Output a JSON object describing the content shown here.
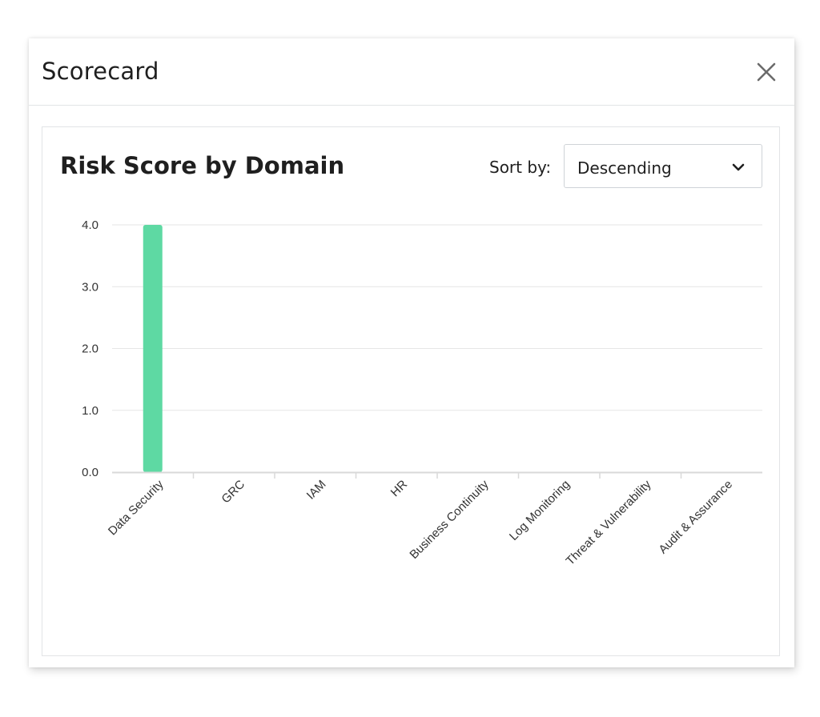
{
  "modal": {
    "title": "Scorecard",
    "close_icon": "close-icon"
  },
  "card": {
    "title": "Risk Score by Domain",
    "sort_label": "Sort by:",
    "sort_value": "Descending",
    "sort_icon": "chevron-down-icon"
  },
  "colors": {
    "bar": "#5ed9a3",
    "gridline": "#e6e6e6",
    "axis": "#d9d9d9",
    "tick_text": "#333333"
  },
  "chart_data": {
    "type": "bar",
    "title": "Risk Score by Domain",
    "categories": [
      "Data Security",
      "GRC",
      "IAM",
      "HR",
      "Business Continuity",
      "Log Monitoring",
      "Threat & Vulnerability",
      "Audit & Assurance"
    ],
    "values": [
      4.0,
      0,
      0,
      0,
      0,
      0,
      0,
      0
    ],
    "yticks": [
      "0.0",
      "1.0",
      "2.0",
      "3.0",
      "4.0"
    ],
    "ylim": [
      0,
      4
    ],
    "grid": true,
    "legend": "none",
    "xlabel": "",
    "ylabel": ""
  }
}
